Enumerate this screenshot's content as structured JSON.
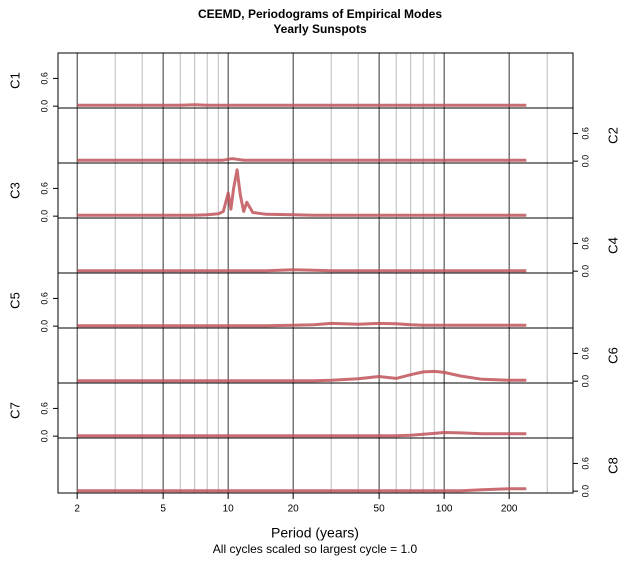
{
  "chart_data": {
    "type": "line",
    "title": "CEEMD, Periodograms of Empirical Modes",
    "subtitle": "Yearly Sunspots",
    "x_label": "Period (years)",
    "caption": "All cycles scaled so largest cycle = 1.0",
    "log_x": true,
    "xlim": [
      1.63,
      395
    ],
    "xticks": [
      2,
      5,
      10,
      20,
      50,
      100,
      200
    ],
    "xgrid": [
      3,
      4,
      6,
      7,
      8,
      9,
      30,
      40,
      60,
      70,
      80,
      90,
      300
    ],
    "ylim": [
      -0.04,
      1.15
    ],
    "yticks": [
      {
        "value": 0,
        "label": "0.0"
      },
      {
        "value": 0.6,
        "label": "0.6"
      }
    ],
    "x": [
      2,
      3,
      4,
      5,
      6,
      7,
      8,
      9,
      9.5,
      10,
      10.3,
      10.6,
      11,
      11.4,
      11.8,
      12.2,
      13,
      15,
      20,
      25,
      30,
      40,
      50,
      60,
      70,
      80,
      90,
      100,
      120,
      150,
      200,
      240
    ],
    "series": [
      {
        "name": "C1",
        "color": "#c0545a",
        "values": [
          0.02,
          0.02,
          0.02,
          0.02,
          0.02,
          0.03,
          0.02,
          0.02,
          0.02,
          0.02,
          0.02,
          0.02,
          0.02,
          0.02,
          0.02,
          0.02,
          0.02,
          0.02,
          0.02,
          0.02,
          0.02,
          0.02,
          0.02,
          0.02,
          0.02,
          0.02,
          0.02,
          0.02,
          0.02,
          0.02,
          0.02,
          0.02
        ]
      },
      {
        "name": "C2",
        "color": "#c0545a",
        "values": [
          0.02,
          0.02,
          0.02,
          0.02,
          0.02,
          0.02,
          0.02,
          0.02,
          0.02,
          0.04,
          0.05,
          0.05,
          0.04,
          0.03,
          0.02,
          0.02,
          0.02,
          0.02,
          0.02,
          0.02,
          0.02,
          0.02,
          0.02,
          0.02,
          0.02,
          0.02,
          0.02,
          0.02,
          0.02,
          0.02,
          0.02,
          0.02
        ]
      },
      {
        "name": "C3",
        "color": "#c0545a",
        "values": [
          0.02,
          0.02,
          0.02,
          0.02,
          0.02,
          0.02,
          0.03,
          0.05,
          0.1,
          0.5,
          0.15,
          0.6,
          1.0,
          0.45,
          0.1,
          0.3,
          0.08,
          0.04,
          0.03,
          0.02,
          0.02,
          0.02,
          0.02,
          0.02,
          0.02,
          0.02,
          0.02,
          0.02,
          0.02,
          0.02,
          0.02,
          0.02
        ]
      },
      {
        "name": "C4",
        "color": "#c0545a",
        "values": [
          0.01,
          0.01,
          0.01,
          0.01,
          0.01,
          0.01,
          0.01,
          0.01,
          0.01,
          0.01,
          0.01,
          0.01,
          0.01,
          0.01,
          0.01,
          0.01,
          0.01,
          0.01,
          0.03,
          0.02,
          0.01,
          0.01,
          0.01,
          0.01,
          0.01,
          0.01,
          0.01,
          0.01,
          0.01,
          0.01,
          0.01,
          0.01
        ]
      },
      {
        "name": "C5",
        "color": "#c0545a",
        "values": [
          0.01,
          0.01,
          0.01,
          0.01,
          0.01,
          0.01,
          0.01,
          0.01,
          0.01,
          0.01,
          0.01,
          0.01,
          0.01,
          0.01,
          0.01,
          0.01,
          0.01,
          0.01,
          0.02,
          0.03,
          0.06,
          0.04,
          0.06,
          0.05,
          0.03,
          0.02,
          0.02,
          0.02,
          0.02,
          0.02,
          0.02,
          0.02
        ]
      },
      {
        "name": "C6",
        "color": "#c0545a",
        "values": [
          0.01,
          0.01,
          0.01,
          0.01,
          0.01,
          0.01,
          0.01,
          0.01,
          0.01,
          0.01,
          0.01,
          0.01,
          0.01,
          0.01,
          0.01,
          0.01,
          0.01,
          0.01,
          0.01,
          0.01,
          0.02,
          0.05,
          0.1,
          0.06,
          0.14,
          0.2,
          0.21,
          0.19,
          0.11,
          0.04,
          0.02,
          0.02
        ]
      },
      {
        "name": "C7",
        "color": "#c0545a",
        "values": [
          0.01,
          0.01,
          0.01,
          0.01,
          0.01,
          0.01,
          0.01,
          0.01,
          0.01,
          0.01,
          0.01,
          0.01,
          0.01,
          0.01,
          0.01,
          0.01,
          0.01,
          0.01,
          0.01,
          0.01,
          0.01,
          0.01,
          0.01,
          0.01,
          0.02,
          0.04,
          0.06,
          0.08,
          0.07,
          0.05,
          0.05,
          0.05
        ]
      },
      {
        "name": "C8",
        "color": "#c0545a",
        "values": [
          0.01,
          0.01,
          0.01,
          0.01,
          0.01,
          0.01,
          0.01,
          0.01,
          0.01,
          0.01,
          0.01,
          0.01,
          0.01,
          0.01,
          0.01,
          0.01,
          0.01,
          0.01,
          0.01,
          0.01,
          0.01,
          0.01,
          0.01,
          0.01,
          0.01,
          0.01,
          0.01,
          0.01,
          0.01,
          0.03,
          0.05,
          0.05
        ]
      }
    ]
  }
}
